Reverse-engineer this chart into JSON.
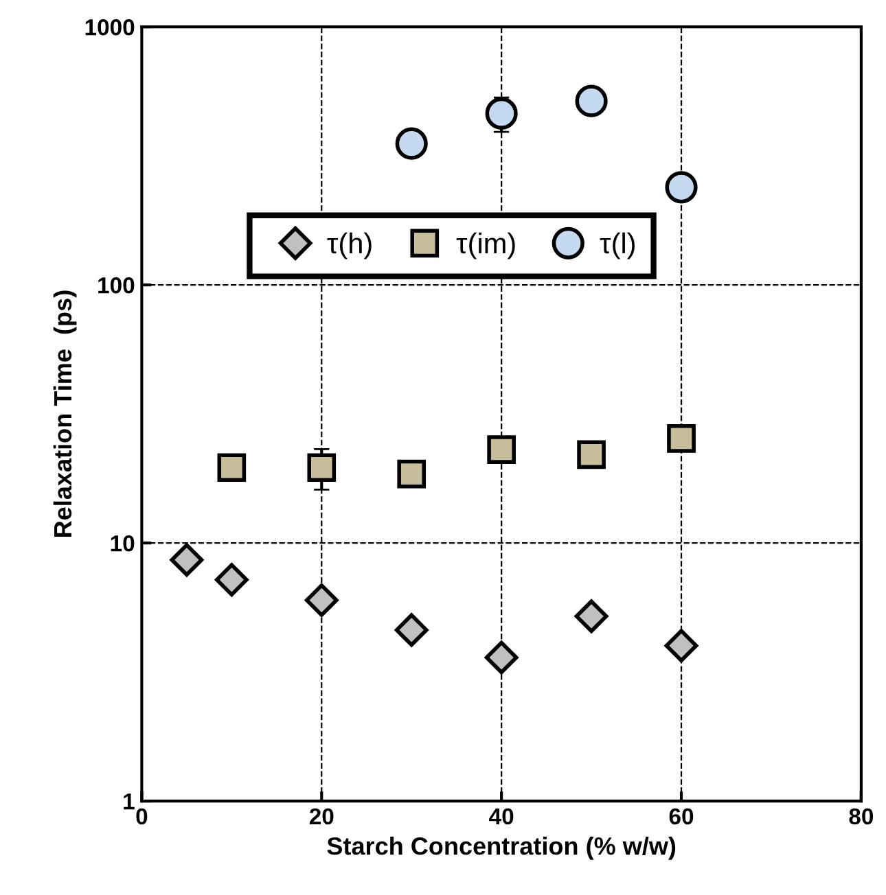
{
  "chart_data": {
    "type": "scatter",
    "xlabel": "Starch Concentration (% w/w)",
    "ylabel": "Relaxation Time  (ps)",
    "xlim": [
      0,
      80
    ],
    "xticks": [
      0,
      20,
      40,
      60,
      80
    ],
    "ylim": [
      1,
      1000
    ],
    "yticks": [
      1,
      10,
      100,
      1000
    ],
    "log": "y",
    "grid": true,
    "line_style": "dashed",
    "legend": "top left",
    "series": [
      {
        "name": "τ(h)",
        "color": "#c0c0c0",
        "marker": "diamond",
        "x": [
          5,
          10,
          20,
          30,
          40,
          50,
          60
        ],
        "values": [
          8.6,
          7.2,
          6.0,
          4.6,
          3.6,
          5.2,
          4.0
        ]
      },
      {
        "name": "τ(im)",
        "color": "#c8bd9a",
        "marker": "square",
        "x": [
          10,
          20,
          30,
          40,
          50,
          60
        ],
        "values": [
          19.6,
          19.6,
          18.5,
          23,
          22,
          25.4
        ],
        "errors": [
          null,
          3.5,
          null,
          null,
          null,
          null
        ]
      },
      {
        "name": "τ(l)",
        "color": "#c5d9f1",
        "marker": "circle",
        "x": [
          30,
          40,
          50,
          60
        ],
        "values": [
          353,
          462,
          516,
          239
        ],
        "errors": [
          null,
          70,
          null,
          null
        ]
      }
    ]
  }
}
